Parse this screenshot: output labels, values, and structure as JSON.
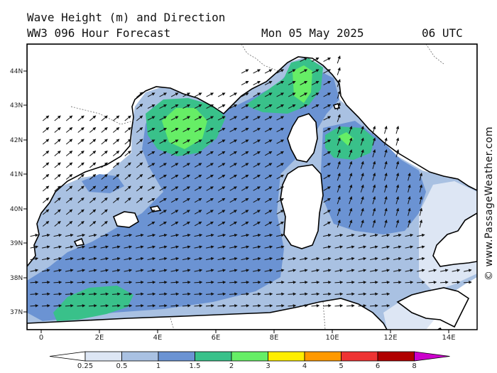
{
  "header": {
    "line1": "Wave Height (m) and Direction",
    "model": "WW3 096 Hour Forecast",
    "date": "Mon 05 May 2025",
    "time": "06 UTC"
  },
  "credit": "© www.PassageWeather.com",
  "axes": {
    "lon_labels": [
      "0",
      "2E",
      "4E",
      "6E",
      "8E",
      "10E",
      "12E",
      "14E"
    ],
    "lat_labels": [
      "44N",
      "43N",
      "42N",
      "41N",
      "40N",
      "39N",
      "38N",
      "37N"
    ]
  },
  "legend": {
    "labels": [
      "0.25",
      "0.5",
      "1",
      "1.5",
      "2",
      "3",
      "4",
      "5",
      "6",
      "8"
    ],
    "colors": [
      "#ffffff",
      "#dde6f4",
      "#a9c1e2",
      "#6b93d3",
      "#39c18a",
      "#66ee66",
      "#ffee00",
      "#ff9900",
      "#ee3333",
      "#b00000",
      "#cc00cc"
    ]
  },
  "chart_data": {
    "type": "heatmap",
    "variable": "Wave Height (m) and Direction",
    "lon_range": [
      -0.5,
      15
    ],
    "lat_range": [
      36.5,
      44.8
    ],
    "units": "m"
  }
}
